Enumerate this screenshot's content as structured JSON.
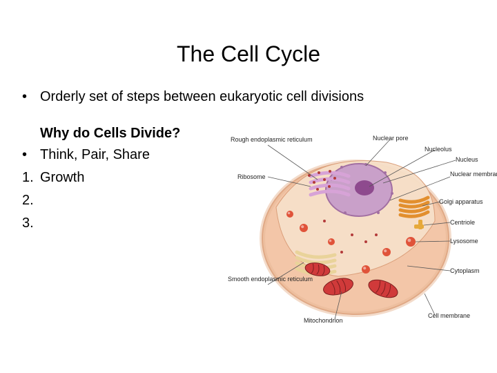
{
  "title": "The Cell Cycle",
  "intro_bullet_mark": "•",
  "intro_bullet_text": "Orderly set of steps between eukaryotic cell divisions",
  "subheading": "Why do Cells Divide?",
  "items": [
    {
      "mark": "•",
      "text": "Think, Pair, Share"
    },
    {
      "mark": "1.",
      "text": " Growth"
    },
    {
      "mark": "2.",
      "text": ""
    },
    {
      "mark": "3.",
      "text": ""
    }
  ],
  "diagram": {
    "cell_outer_fill": "#f3c6a8",
    "cell_outer_stroke": "#d99b76",
    "cytoplasm_fill": "#f7e0c9",
    "nucleus_fill": "#c9a0c9",
    "nucleus_stroke": "#a26fa2",
    "nucleolus_fill": "#8e4a8e",
    "er_rough_fill": "#d7a3d7",
    "er_smooth_fill": "#e9d39a",
    "golgi_fill": "#e28f2e",
    "mito_fill": "#d03a3a",
    "mito_stroke": "#7a1e1e",
    "lysosome_fill": "#e0533a",
    "centriole_fill": "#e6a93a",
    "ribosome_fill": "#b33a3a",
    "membrane_ring": "#e8b896",
    "labels": {
      "rough_er": "Rough\nendoplasmic\nreticulum",
      "ribosome": "Ribosome",
      "smooth_er": "Smooth\nendoplasmic\nreticulum",
      "mitochondrion": "Mitochondrion",
      "nuclear_pore": "Nuclear pore",
      "nucleolus": "Nucleolus",
      "nucleus": "Nucleus",
      "nuclear_membrane": "Nuclear\nmembrane",
      "golgi": "Golgi apparatus",
      "centriole": "Centriole",
      "lysosome": "Lysosome",
      "cytoplasm": "Cytoplasm",
      "cell_membrane": "Cell membrane"
    }
  }
}
